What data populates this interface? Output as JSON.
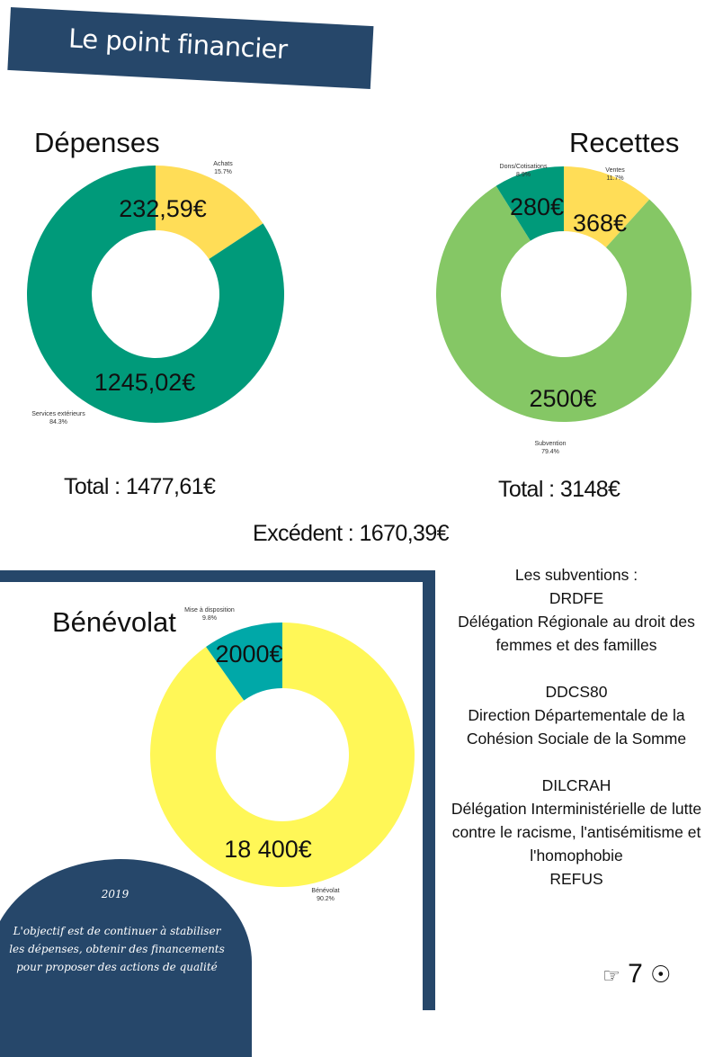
{
  "banner": {
    "title": "Le point financier"
  },
  "depenses": {
    "heading": "Dépenses",
    "total": "Total : 1477,61€"
  },
  "recettes": {
    "heading": "Recettes",
    "total": "Total : 3148€"
  },
  "excedent": "Excédent : 1670,39€",
  "benevolat": {
    "heading": "Bénévolat"
  },
  "chart_data": [
    {
      "type": "pie",
      "title": "Dépenses",
      "categories": [
        "Achats",
        "Services extérieurs"
      ],
      "values": [
        232.59,
        1245.02
      ],
      "value_labels": [
        "232,59€",
        "1245,02€"
      ],
      "percent_labels": [
        "15.7%",
        "84.3%"
      ],
      "colors": [
        "#ffdd57",
        "#009a7a"
      ]
    },
    {
      "type": "pie",
      "title": "Recettes",
      "categories": [
        "Ventes",
        "Subvention",
        "Dons/Cotisations"
      ],
      "values": [
        368,
        2500,
        280
      ],
      "value_labels": [
        "368€",
        "2500€",
        "280€"
      ],
      "percent_labels": [
        "11.7%",
        "79.4%",
        "8.9%"
      ],
      "colors": [
        "#ffdd57",
        "#85c765",
        "#009a7a"
      ]
    },
    {
      "type": "pie",
      "title": "Bénévolat",
      "categories": [
        "Bénévolat",
        "Mise à disposition"
      ],
      "values": [
        18400,
        2000
      ],
      "value_labels": [
        "18 400€",
        "2000€"
      ],
      "percent_labels": [
        "90.2%",
        "9.8%"
      ],
      "colors": [
        "#fff757",
        "#00a8a8"
      ]
    }
  ],
  "subventions": {
    "lines": [
      "Les subventions :",
      "DRDFE",
      "Délégation Régionale au droit des femmes et des familles",
      "",
      "DDCS80",
      "Direction Départementale de la Cohésion Sociale de la Somme",
      "",
      "DILCRAH",
      "Délégation Interministérielle de lutte contre le racisme, l'antisémitisme et l'homophobie",
      "REFUS"
    ]
  },
  "goal": {
    "year": "2019",
    "text": "L'objectif est de continuer à stabiliser les dépenses, obtenir des financements pour proposer des actions de qualité"
  },
  "page": {
    "number": "7",
    "left_icon": "pointing-hand-icon",
    "right_icon": "sun-circle-icon"
  }
}
